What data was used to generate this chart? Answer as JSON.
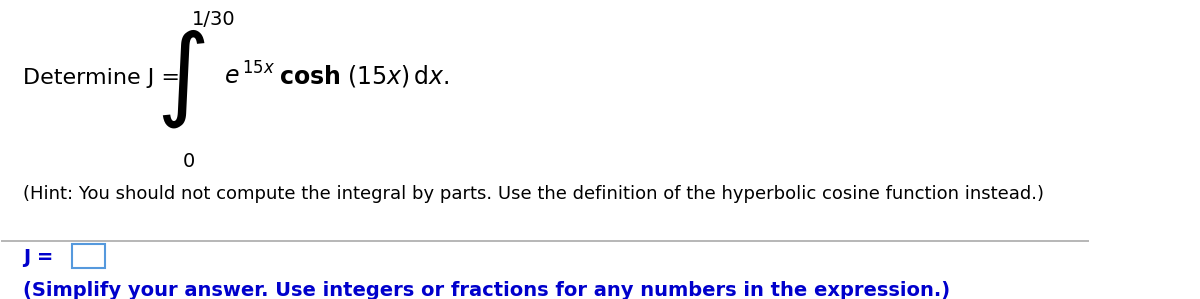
{
  "background_color": "#ffffff",
  "title_number": "1/30",
  "determine_text": "Determine J =",
  "integral_limits_top": "1/30",
  "integral_limits_bottom": "0",
  "integrand": "$e^{15x}$ **cosh** (15x)dx.",
  "hint_text": "(Hint: You should not compute the integral by parts. Use the definition of the hyperbolic cosine function instead.)",
  "j_label": "J =",
  "simplify_text": "(Simplify your answer. Use integers or fractions for any numbers in the expression.)",
  "text_color_black": "#000000",
  "text_color_blue": "#0000cc",
  "box_color": "#5599dd",
  "divider_color": "#aaaaaa",
  "font_size_main": 15,
  "font_size_hint": 13,
  "font_size_bottom": 13
}
